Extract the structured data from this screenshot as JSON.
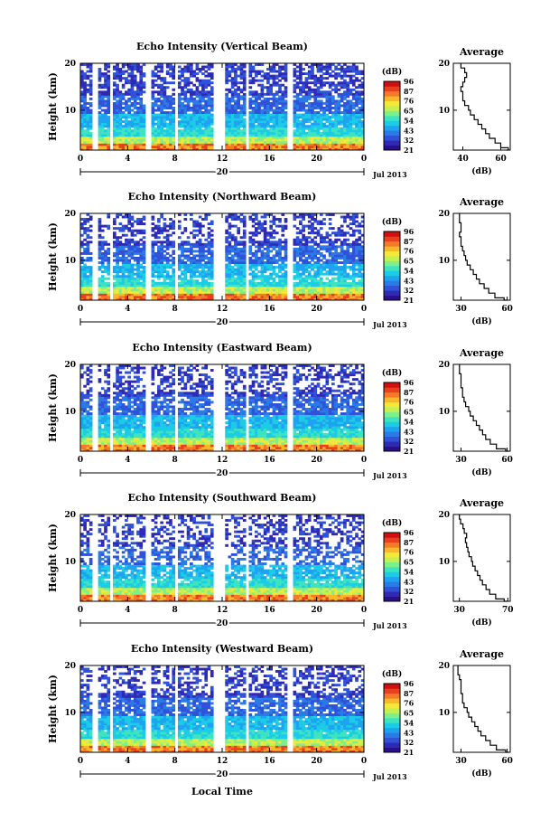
{
  "colors": {
    "scale": [
      "#2a0f8a",
      "#2f2ab4",
      "#2f52d8",
      "#2b7ae6",
      "#1ea3f0",
      "#1ccbe6",
      "#3ee3c0",
      "#7cf08a",
      "#c4f050",
      "#f5e83a",
      "#f8b82a",
      "#f5792a",
      "#e8401f",
      "#d01010"
    ]
  },
  "figure": {
    "xlabel": "Local Time",
    "legend_unit": "(dB)",
    "average_title": "Average"
  },
  "chart_data": [
    {
      "type": "heatmap",
      "title": "Echo Intensity (Vertical Beam)",
      "ylabel": "Height (km)",
      "y_ticks": [
        "20",
        "10"
      ],
      "x_ticks": [
        "0",
        "4",
        "8",
        "12",
        "16",
        "20",
        "0"
      ],
      "date_label": "20",
      "month_label": "Jul 2013",
      "xlim": [
        0,
        24
      ],
      "ylim": [
        1.5,
        20
      ],
      "colorbar": {
        "unit": "(dB)",
        "ticks": [
          "96",
          "87",
          "76",
          "65",
          "54",
          "43",
          "32",
          "21"
        ]
      },
      "data_gaps_hours": [
        [
          1.1,
          1.6
        ],
        [
          2.4,
          2.8
        ],
        [
          5.5,
          5.9
        ],
        [
          7.9,
          8.2
        ],
        [
          11.2,
          12.2
        ],
        [
          13.9,
          14.3
        ],
        [
          17.6,
          18.0
        ]
      ],
      "average_profile": {
        "xlabel": "(dB)",
        "x_ticks": [
          "40",
          "60"
        ],
        "y_ticks": [
          "20",
          "10"
        ],
        "xlim": [
          35,
          65
        ],
        "height_km": [
          1.5,
          2,
          3,
          4,
          5,
          6,
          7,
          8,
          9,
          10,
          11,
          12,
          13,
          14,
          15,
          16,
          17,
          18,
          19,
          20
        ],
        "value_db": [
          63,
          64,
          60,
          57,
          54,
          52,
          50,
          48,
          46,
          44,
          43,
          41,
          40,
          40,
          39,
          40,
          41,
          42,
          41,
          39
        ]
      }
    },
    {
      "type": "heatmap",
      "title": "Echo Intensity (Northward Beam)",
      "ylabel": "Height (km)",
      "y_ticks": [
        "20",
        "10"
      ],
      "x_ticks": [
        "0",
        "4",
        "8",
        "12",
        "16",
        "20",
        "0"
      ],
      "date_label": "20",
      "month_label": "Jul 2013",
      "xlim": [
        0,
        24
      ],
      "ylim": [
        1.5,
        20
      ],
      "colorbar": {
        "unit": "(dB)",
        "ticks": [
          "96",
          "87",
          "76",
          "65",
          "54",
          "43",
          "32",
          "21"
        ]
      },
      "data_gaps_hours": [
        [
          1.1,
          1.6
        ],
        [
          2.4,
          2.8
        ],
        [
          5.5,
          5.9
        ],
        [
          7.9,
          8.2
        ],
        [
          11.2,
          12.2
        ],
        [
          13.9,
          14.3
        ],
        [
          17.6,
          18.0
        ]
      ],
      "average_profile": {
        "xlabel": "(dB)",
        "x_ticks": [
          "30",
          "60"
        ],
        "y_ticks": [
          "20",
          "10"
        ],
        "xlim": [
          25,
          62
        ],
        "height_km": [
          1.5,
          2,
          3,
          4,
          5,
          6,
          7,
          8,
          9,
          10,
          11,
          12,
          13,
          14,
          15,
          16,
          17,
          18,
          19,
          20
        ],
        "value_db": [
          60,
          58,
          52,
          48,
          45,
          42,
          40,
          38,
          36,
          34,
          33,
          32,
          31,
          30,
          30,
          29,
          30,
          30,
          29,
          29
        ]
      }
    },
    {
      "type": "heatmap",
      "title": "Echo Intensity (Eastward Beam)",
      "ylabel": "Height (km)",
      "y_ticks": [
        "20",
        "10"
      ],
      "x_ticks": [
        "0",
        "4",
        "8",
        "12",
        "16",
        "20",
        "0"
      ],
      "date_label": "20",
      "month_label": "Jul 2013",
      "xlim": [
        0,
        24
      ],
      "ylim": [
        1.5,
        20
      ],
      "colorbar": {
        "unit": "(dB)",
        "ticks": [
          "96",
          "87",
          "76",
          "65",
          "54",
          "43",
          "32",
          "21"
        ]
      },
      "data_gaps_hours": [
        [
          1.1,
          1.6
        ],
        [
          2.4,
          2.8
        ],
        [
          5.5,
          5.9
        ],
        [
          7.9,
          8.2
        ],
        [
          11.2,
          12.2
        ],
        [
          13.9,
          14.3
        ],
        [
          17.6,
          18.0
        ]
      ],
      "average_profile": {
        "xlabel": "(dB)",
        "x_ticks": [
          "30",
          "60"
        ],
        "y_ticks": [
          "20",
          "10"
        ],
        "xlim": [
          25,
          62
        ],
        "height_km": [
          1.5,
          2,
          3,
          4,
          5,
          6,
          7,
          8,
          9,
          10,
          11,
          12,
          13,
          14,
          15,
          16,
          17,
          18,
          19,
          20
        ],
        "value_db": [
          61,
          59,
          53,
          49,
          46,
          44,
          42,
          40,
          38,
          36,
          35,
          33,
          32,
          31,
          31,
          30,
          30,
          30,
          29,
          29
        ]
      }
    },
    {
      "type": "heatmap",
      "title": "Echo Intensity (Southward Beam)",
      "ylabel": "Height (km)",
      "y_ticks": [
        "20",
        "10"
      ],
      "x_ticks": [
        "0",
        "4",
        "8",
        "12",
        "16",
        "20",
        "0"
      ],
      "date_label": "20",
      "month_label": "Jul 2013",
      "xlim": [
        0,
        24
      ],
      "ylim": [
        1.5,
        20
      ],
      "colorbar": {
        "unit": "(dB)",
        "ticks": [
          "96",
          "87",
          "76",
          "65",
          "54",
          "43",
          "32",
          "21"
        ]
      },
      "data_gaps_hours": [
        [
          1.1,
          1.6
        ],
        [
          2.4,
          2.8
        ],
        [
          5.5,
          5.9
        ],
        [
          7.9,
          8.2
        ],
        [
          11.2,
          12.2
        ],
        [
          13.9,
          14.3
        ],
        [
          17.6,
          18.0
        ]
      ],
      "average_profile": {
        "xlabel": "(dB)",
        "x_ticks": [
          "30",
          "70"
        ],
        "y_ticks": [
          "20",
          "10"
        ],
        "xlim": [
          25,
          72
        ],
        "height_km": [
          1.5,
          2,
          3,
          4,
          5,
          6,
          7,
          8,
          9,
          10,
          11,
          12,
          13,
          14,
          15,
          16,
          17,
          18,
          19,
          20
        ],
        "value_db": [
          70,
          67,
          60,
          55,
          52,
          49,
          47,
          45,
          43,
          41,
          40,
          38,
          37,
          36,
          35,
          36,
          34,
          33,
          31,
          30
        ]
      }
    },
    {
      "type": "heatmap",
      "title": "Echo Intensity (Westward Beam)",
      "ylabel": "Height (km)",
      "y_ticks": [
        "20",
        "10"
      ],
      "x_ticks": [
        "0",
        "4",
        "8",
        "12",
        "16",
        "20",
        "0"
      ],
      "date_label": "20",
      "month_label": "Jul 2013",
      "xlim": [
        0,
        24
      ],
      "ylim": [
        1.5,
        20
      ],
      "colorbar": {
        "unit": "(dB)",
        "ticks": [
          "96",
          "87",
          "76",
          "65",
          "54",
          "43",
          "32",
          "21"
        ]
      },
      "data_gaps_hours": [
        [
          1.1,
          1.6
        ],
        [
          2.4,
          2.8
        ],
        [
          5.5,
          5.9
        ],
        [
          7.9,
          8.2
        ],
        [
          11.2,
          12.2
        ],
        [
          13.9,
          14.3
        ],
        [
          17.6,
          18.0
        ]
      ],
      "average_profile": {
        "xlabel": "(dB)",
        "x_ticks": [
          "30",
          "60"
        ],
        "y_ticks": [
          "20",
          "10"
        ],
        "xlim": [
          25,
          62
        ],
        "height_km": [
          1.5,
          2,
          3,
          4,
          5,
          6,
          7,
          8,
          9,
          10,
          11,
          12,
          13,
          14,
          15,
          16,
          17,
          18,
          19,
          20
        ],
        "value_db": [
          61,
          59,
          53,
          49,
          46,
          43,
          41,
          39,
          37,
          35,
          34,
          32,
          31,
          31,
          30,
          30,
          30,
          29,
          28,
          28
        ]
      }
    }
  ]
}
